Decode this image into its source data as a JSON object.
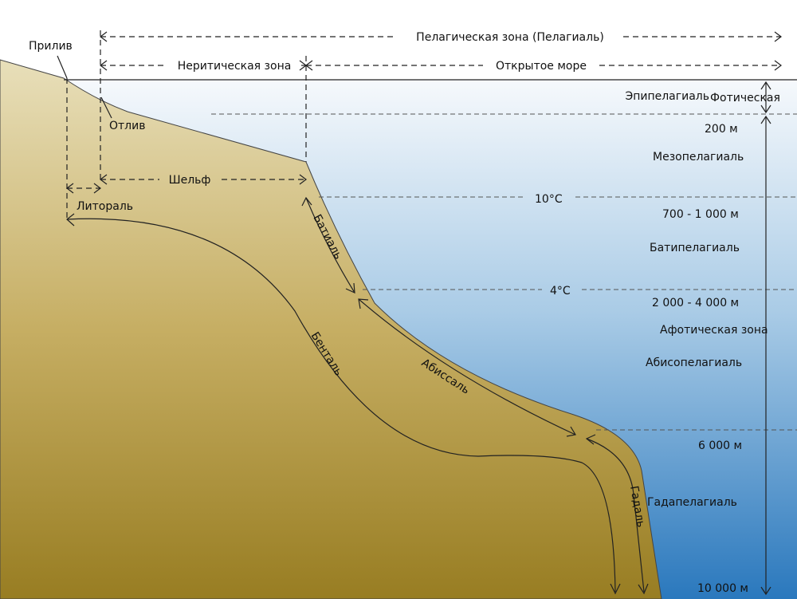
{
  "labels": {
    "pelagic_zone": "Пелагическая зона (Пелагиаль)",
    "neritic_zone": "Неритическая зона",
    "open_sea": "Открытое море",
    "high_tide": "Прилив",
    "low_tide": "Отлив",
    "shelf": "Шельф",
    "littoral": "Литораль",
    "bathyal": "Батиаль",
    "benthal": "Бенталь",
    "abyssal": "Абиссаль",
    "hadal": "Гадаль",
    "epipelagic": "Эпипелагиаль",
    "photic_zone": "Фотическая",
    "mesopelagic": "Мезопелагиаль",
    "bathypelagic": "Батипелагиаль",
    "aphotic_zone": "Афотическая зона",
    "abyssopelagic": "Абисопелагиаль",
    "hadopelagic": "Гадапелагиаль",
    "temp_10": "10°C",
    "temp_4": "4°C",
    "depth_200": "200 м",
    "depth_700_1000": "700 - 1 000 м",
    "depth_2000_4000": "2 000 - 4 000 м",
    "depth_6000": "6 000 м",
    "depth_10000": "10 000 м"
  },
  "colors": {
    "water_top": "#eef4f9",
    "water_bottom": "#2a78bd",
    "land_top": "#e6dcb3",
    "land_bottom": "#9b8125",
    "lines": "#222222"
  }
}
